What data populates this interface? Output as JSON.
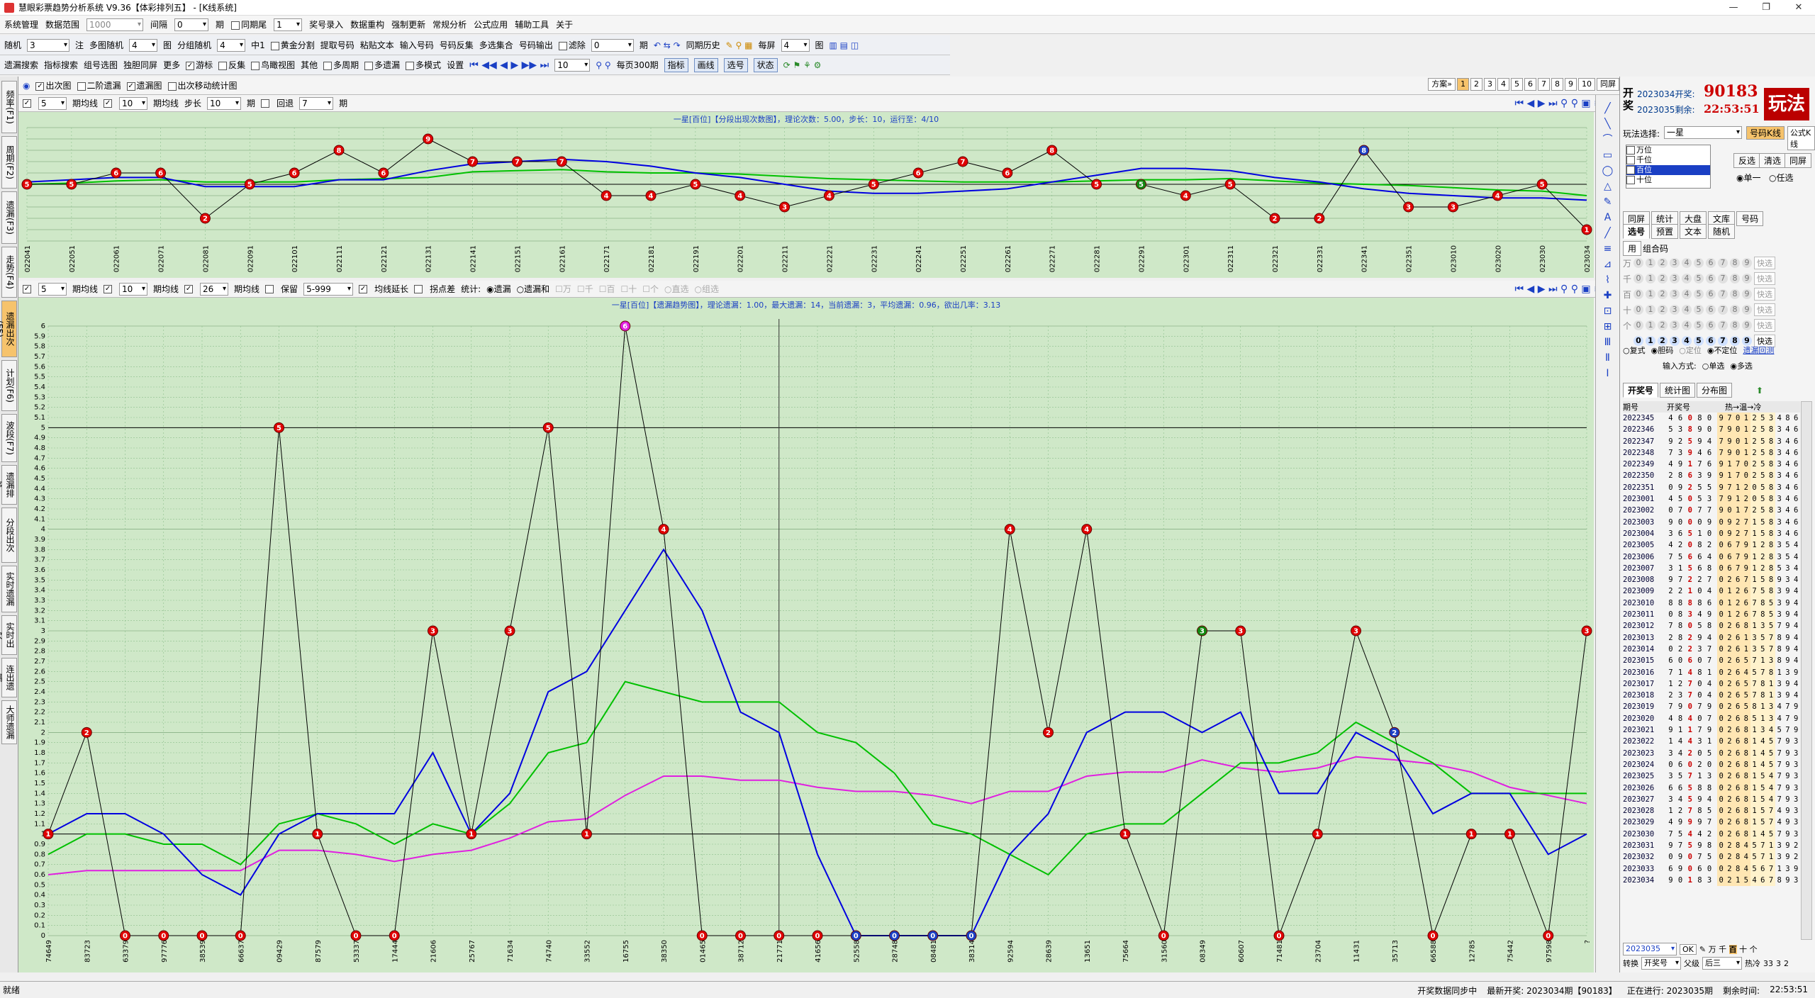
{
  "window": {
    "title": "慧眼彩票趋势分析系统 V9.36【体彩排列五】 - [K线系统]",
    "min": "—",
    "max": "❐",
    "close": "✕"
  },
  "menu": [
    "系统管理",
    "数据范围",
    "1000",
    "间隔",
    "0",
    "期",
    "同期尾",
    "1",
    "奖号录入",
    "数据重构",
    "强制更新",
    "常规分析",
    "公式应用",
    "辅助工具",
    "关于"
  ],
  "toolbar1": [
    "随机",
    "3",
    "注",
    "多图随机",
    "4",
    "图",
    "分组随机",
    "4",
    "中1",
    "黄金分割",
    "提取号码",
    "粘贴文本",
    "输入号码",
    "号码反集",
    "多选集合",
    "号码输出",
    "滤除",
    "0",
    "期",
    "同期历史",
    "每屏",
    "4",
    "图"
  ],
  "toolbar2": [
    "遗漏搜索",
    "指标搜索",
    "组号选图",
    "独胆同屏",
    "更多",
    "游标",
    "反集",
    "鸟瞰视图",
    "其他",
    "多周期",
    "多遗漏",
    "多模式",
    "设置",
    "10",
    "每页300期",
    "指标",
    "画线",
    "选号",
    "状态"
  ],
  "chartsbar": {
    "items": [
      "出次图",
      "二阶遗漏",
      "遗漏图",
      "出次移动统计图"
    ],
    "scheme": "方案»",
    "pages": [
      "1",
      "2",
      "3",
      "4",
      "5",
      "6",
      "7",
      "8",
      "9",
      "10",
      "同屏"
    ]
  },
  "ctrl1": {
    "ma1": "5",
    "ma1_label": "期均线",
    "ma2": "10",
    "ma2_label": "期均线",
    "step_label": "步长",
    "step": "10",
    "step_unit": "期",
    "back_label": "回退",
    "back": "7",
    "back_unit": "期"
  },
  "ctrl2": {
    "ma1": "5",
    "ma1_label": "期均线",
    "ma2": "10",
    "ma2_label": "期均线",
    "ma3": "26",
    "ma3_label": "期均线",
    "keep_label": "保留",
    "keep": "5-999",
    "extend_label": "均线延长",
    "turn_label": "拐点差",
    "stat_label": "统计:",
    "opts": [
      "遗漏",
      "遗漏和",
      "万",
      "千",
      "百",
      "十",
      "个",
      "直选",
      "组选"
    ]
  },
  "left_tabs": [
    "频率(F1)",
    "周期(F2)",
    "遗漏(F3)",
    "走势(F4)",
    "遗漏出次(F5)",
    "计划(F6)",
    "波段(F7)",
    "遗漏排序",
    "分段出次",
    "实时遗漏",
    "实时出次",
    "连出遗漏",
    "大师遗漏"
  ],
  "chart1": {
    "title": "一星[百位]【分段出现次数图】，理论次数：5.00，步长：10，运行至：4/10",
    "x_labels": [
      "022041",
      "022051",
      "022061",
      "022071",
      "022081",
      "022091",
      "022101",
      "022111",
      "022121",
      "022131",
      "022141",
      "022151",
      "022161",
      "022171",
      "022181",
      "022191",
      "022201",
      "022211",
      "022221",
      "022231",
      "022241",
      "022251",
      "022261",
      "022271",
      "022281",
      "022291",
      "022301",
      "022311",
      "022321",
      "022331",
      "022341",
      "022351",
      "023010",
      "023020",
      "023030",
      "023034"
    ],
    "values": [
      5,
      5,
      6,
      6,
      2,
      5,
      6,
      8,
      6,
      9,
      7,
      7,
      7,
      4,
      4,
      5,
      4,
      3,
      4,
      5,
      6,
      7,
      6,
      8,
      5,
      5,
      4,
      5,
      2,
      2,
      8,
      3,
      3,
      4,
      5,
      1
    ],
    "ma5": [
      5.2,
      5.4,
      5.6,
      5.6,
      4.8,
      4.8,
      4.8,
      5.4,
      5.4,
      6.2,
      6.8,
      7.0,
      7.2,
      7.0,
      6.6,
      6.0,
      5.6,
      5.0,
      4.4,
      4.2,
      4.2,
      4.4,
      4.6,
      5.2,
      5.8,
      6.4,
      6.4,
      6.2,
      5.6,
      5.2,
      4.6,
      4.2,
      4.0,
      3.8,
      3.8,
      3.6
    ],
    "ma10": [
      5.0,
      5.1,
      5.3,
      5.4,
      5.2,
      5.2,
      5.2,
      5.4,
      5.5,
      5.6,
      6.1,
      6.2,
      6.3,
      6.1,
      6.0,
      6.0,
      5.9,
      5.7,
      5.5,
      5.4,
      5.3,
      5.2,
      5.2,
      5.2,
      5.3,
      5.4,
      5.4,
      5.5,
      5.3,
      5.1,
      5.0,
      4.9,
      4.7,
      4.5,
      4.4,
      4.0
    ],
    "ymin": 0,
    "ymax": 10
  },
  "chart2": {
    "title": "一星[百位]【遗漏趋势图】，理论遗漏：1.00，最大遗漏：14，当前遗漏：3，平均遗漏：0.96，欲出几率：3.13",
    "x_labels": [
      "74649",
      "83723",
      "63379",
      "97776",
      "38539",
      "66637",
      "09429",
      "87579",
      "53337",
      "17444",
      "21606",
      "25767",
      "71634",
      "74740",
      "33552",
      "16755",
      "38350",
      "01465",
      "38712",
      "21771",
      "41656",
      "52558",
      "28748",
      "08481",
      "38314",
      "92594",
      "28639",
      "13651",
      "75664",
      "31560",
      "08349",
      "60607",
      "71481",
      "23704",
      "11431",
      "35713",
      "66588",
      "12785",
      "75442",
      "97598",
      "?"
    ],
    "values": [
      1,
      2,
      0,
      0,
      0,
      0,
      5,
      1,
      0,
      0,
      3,
      1,
      3,
      5,
      1,
      6,
      4,
      0,
      0,
      0,
      0,
      0,
      0,
      0,
      0,
      4,
      2,
      4,
      1,
      0,
      3,
      3,
      0,
      1,
      3,
      2,
      0,
      1,
      1,
      0,
      3
    ],
    "ma5": [
      1.0,
      1.2,
      1.2,
      1.0,
      0.6,
      0.4,
      1.0,
      1.2,
      1.2,
      1.2,
      1.8,
      1.0,
      1.4,
      2.4,
      2.6,
      3.2,
      3.8,
      3.2,
      2.2,
      2.0,
      0.8,
      0.0,
      0.0,
      0.0,
      0.0,
      0.8,
      1.2,
      2.0,
      2.2,
      2.2,
      2.0,
      2.2,
      1.4,
      1.4,
      2.0,
      1.8,
      1.2,
      1.4,
      1.4,
      0.8,
      1.0
    ],
    "ma10": [
      0.8,
      1.0,
      1.0,
      0.9,
      0.9,
      0.7,
      1.1,
      1.2,
      1.1,
      0.9,
      1.1,
      1.0,
      1.3,
      1.8,
      1.9,
      2.5,
      2.4,
      2.3,
      2.3,
      2.3,
      2.0,
      1.9,
      1.6,
      1.1,
      1.0,
      0.8,
      0.6,
      1.0,
      1.1,
      1.1,
      1.4,
      1.7,
      1.7,
      1.8,
      2.1,
      1.9,
      1.7,
      1.4,
      1.4,
      1.4,
      1.4
    ],
    "ma26": [
      0.6,
      0.64,
      0.64,
      0.64,
      0.64,
      0.64,
      0.84,
      0.84,
      0.8,
      0.73,
      0.8,
      0.84,
      0.96,
      1.12,
      1.15,
      1.38,
      1.57,
      1.57,
      1.53,
      1.53,
      1.46,
      1.42,
      1.42,
      1.38,
      1.3,
      1.42,
      1.42,
      1.57,
      1.61,
      1.61,
      1.73,
      1.65,
      1.61,
      1.65,
      1.76,
      1.73,
      1.69,
      1.61,
      1.46,
      1.38,
      1.3
    ],
    "ymin": 0,
    "ymax": 6,
    "cursor_x": "21771"
  },
  "right": {
    "kai": "开",
    "jiang": "奖",
    "open_label": "2023034开奖:",
    "open_num": "90183",
    "remain_label": "2023035剩余:",
    "remain_time": "22:53:51",
    "wanfa": "玩法",
    "play_label": "玩法选择:",
    "play": "一星",
    "btn_code": "号码K线",
    "btn_formula": "公式K线",
    "positions": [
      "万位",
      "千位",
      "百位",
      "十位"
    ],
    "btns": [
      "反选",
      "清选",
      "同屏"
    ],
    "single": "单一",
    "multi": "任选",
    "tabs1": [
      "同屏",
      "统计",
      "大盘",
      "文库",
      "号码"
    ],
    "tabs2": [
      "选号",
      "预置",
      "文本",
      "随机"
    ],
    "tab_combo": "组合码",
    "rows": [
      "万",
      "千",
      "百",
      "十",
      "个"
    ],
    "fast": "快选",
    "modes": [
      "复式",
      "胆码",
      "定位",
      "不定位",
      "遗漏回测"
    ],
    "input_label": "输入方式:",
    "input_opts": [
      "单选",
      "多选"
    ],
    "hist_tabs": [
      "开奖号",
      "统计图",
      "分布图"
    ],
    "hist_head": [
      "期号",
      "开奖号",
      "热→温→冷"
    ],
    "hist": [
      [
        "2022345",
        "46080",
        "9701253486"
      ],
      [
        "2022346",
        "53890",
        "7901258346"
      ],
      [
        "2022347",
        "92594",
        "7901258346"
      ],
      [
        "2022348",
        "73946",
        "7901258346"
      ],
      [
        "2022349",
        "49176",
        "9170258346"
      ],
      [
        "2022350",
        "28639",
        "9170258346"
      ],
      [
        "2022351",
        "09255",
        "9712058346"
      ],
      [
        "2023001",
        "45053",
        "7912058346"
      ],
      [
        "2023002",
        "07077",
        "9017258346"
      ],
      [
        "2023003",
        "90009",
        "0927158346"
      ],
      [
        "2023004",
        "36510",
        "0927158346"
      ],
      [
        "2023005",
        "42082",
        "0679128354"
      ],
      [
        "2023006",
        "75664",
        "0679128354"
      ],
      [
        "2023007",
        "31568",
        "0679128534"
      ],
      [
        "2023008",
        "97227",
        "0267158934"
      ],
      [
        "2023009",
        "22104",
        "0126758394"
      ],
      [
        "2023010",
        "88886",
        "0126785394"
      ],
      [
        "2023011",
        "08349",
        "0126785394"
      ],
      [
        "2023012",
        "78058",
        "0268135794"
      ],
      [
        "2023013",
        "28294",
        "0261357894"
      ],
      [
        "2023014",
        "02237",
        "0261357894"
      ],
      [
        "2023015",
        "60607",
        "0265713894"
      ],
      [
        "2023016",
        "71481",
        "0264578139"
      ],
      [
        "2023017",
        "12704",
        "0265781394"
      ],
      [
        "2023018",
        "23704",
        "0265781394"
      ],
      [
        "2023019",
        "79079",
        "0265813479"
      ],
      [
        "2023020",
        "48407",
        "0268513479"
      ],
      [
        "2023021",
        "91179",
        "0268134579"
      ],
      [
        "2023022",
        "14431",
        "0268145793"
      ],
      [
        "2023023",
        "34205",
        "0268145793"
      ],
      [
        "2023024",
        "06020",
        "0268145793"
      ],
      [
        "2023025",
        "35713",
        "0268154793"
      ],
      [
        "2023026",
        "66588",
        "0268154793"
      ],
      [
        "2023027",
        "34594",
        "0268154793"
      ],
      [
        "2023028",
        "12785",
        "0268157493"
      ],
      [
        "2023029",
        "49997",
        "0268157493"
      ],
      [
        "2023030",
        "75442",
        "0268145793"
      ],
      [
        "2023031",
        "97598",
        "0284571392"
      ],
      [
        "2023032",
        "09075",
        "0284571392"
      ],
      [
        "2023033",
        "69060",
        "0284567139"
      ],
      [
        "2023034",
        "90183",
        "0215467893"
      ]
    ],
    "issue": "2023035",
    "ok": "OK",
    "conv_label": "转换",
    "conv": "开奖号",
    "period_label": "父级",
    "period": "后三",
    "hot_label": "热冷",
    "hot": "33",
    "hot2": "3",
    "hot3": "2"
  },
  "status": {
    "left": "就绪",
    "sync": "开奖数据同步中",
    "latest": "最新开奖: 2023034期【90183】",
    "running": "正在进行: 2023035期",
    "remain": "剩余时间:",
    "time": "22:53:51"
  },
  "colors": {
    "bg": "#cfe8c8",
    "blue": "#0000e0",
    "green": "#00c000",
    "magenta": "#e020e0",
    "red": "#e00000"
  }
}
